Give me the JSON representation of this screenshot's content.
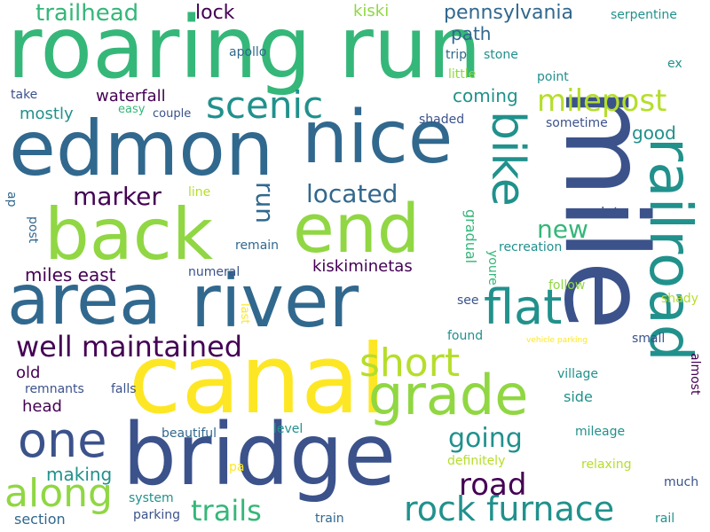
{
  "palette": {
    "dark_purple": "#440154",
    "indigo": "#3b528b",
    "blue": "#31688e",
    "teal": "#21918c",
    "green": "#35b779",
    "lime": "#90d743",
    "yellow": "#fde725"
  },
  "words": {
    "roaring_run": "roaring run",
    "mile": "mile",
    "edmon": "edmon",
    "nice": "nice",
    "canal": "canal",
    "bridge": "bridge",
    "area": "area",
    "river": "river",
    "back": "back",
    "end": "end",
    "railroad": "railroad",
    "grade": "grade",
    "bike": "bike",
    "flat": "flat",
    "one": "one",
    "scenic": "scenic",
    "milepost": "milepost",
    "well_maintained": "well maintained",
    "short": "short",
    "along": "along",
    "rock_furnace": "rock furnace",
    "trails": "trails",
    "road": "road",
    "going": "going",
    "located": "located",
    "marker": "marker",
    "run": "run",
    "new": "new",
    "trailhead": "trailhead",
    "lock": "lock",
    "kiski": "kiski",
    "pennsylvania": "pennsylvania",
    "serpentine": "serpentine",
    "path": "path",
    "apollo": "apollo",
    "trip": "trip",
    "stone": "stone",
    "little": "little",
    "ex": "ex",
    "take": "take",
    "waterfall": "waterfall",
    "coming": "coming",
    "point": "point",
    "mostly": "mostly",
    "easy": "easy",
    "couple": "couple",
    "shaded": "shaded",
    "sometime": "sometime",
    "good": "good",
    "line": "line",
    "ap": "ap",
    "post": "post",
    "gradual": "gradual",
    "lot": "lot",
    "recreation": "recreation",
    "remain": "remain",
    "miles_east": "miles east",
    "kiskiminetas": "kiskiminetas",
    "numeral": "numeral",
    "youre": "youre",
    "follow": "follow",
    "shady": "shady",
    "last": "last",
    "see": "see",
    "found": "found",
    "vehicle_parking": "vehicle parking",
    "small": "small",
    "almost": "almost",
    "old": "old",
    "remnants": "remnants",
    "falls": "falls",
    "village": "village",
    "head": "head",
    "side": "side",
    "beautiful": "beautiful",
    "level": "level",
    "mileage": "mileage",
    "making": "making",
    "definitely": "definitely",
    "pa": "pa",
    "relaxing": "relaxing",
    "much": "much",
    "system": "system",
    "parking": "parking",
    "section": "section",
    "train": "train",
    "rail": "rail"
  }
}
